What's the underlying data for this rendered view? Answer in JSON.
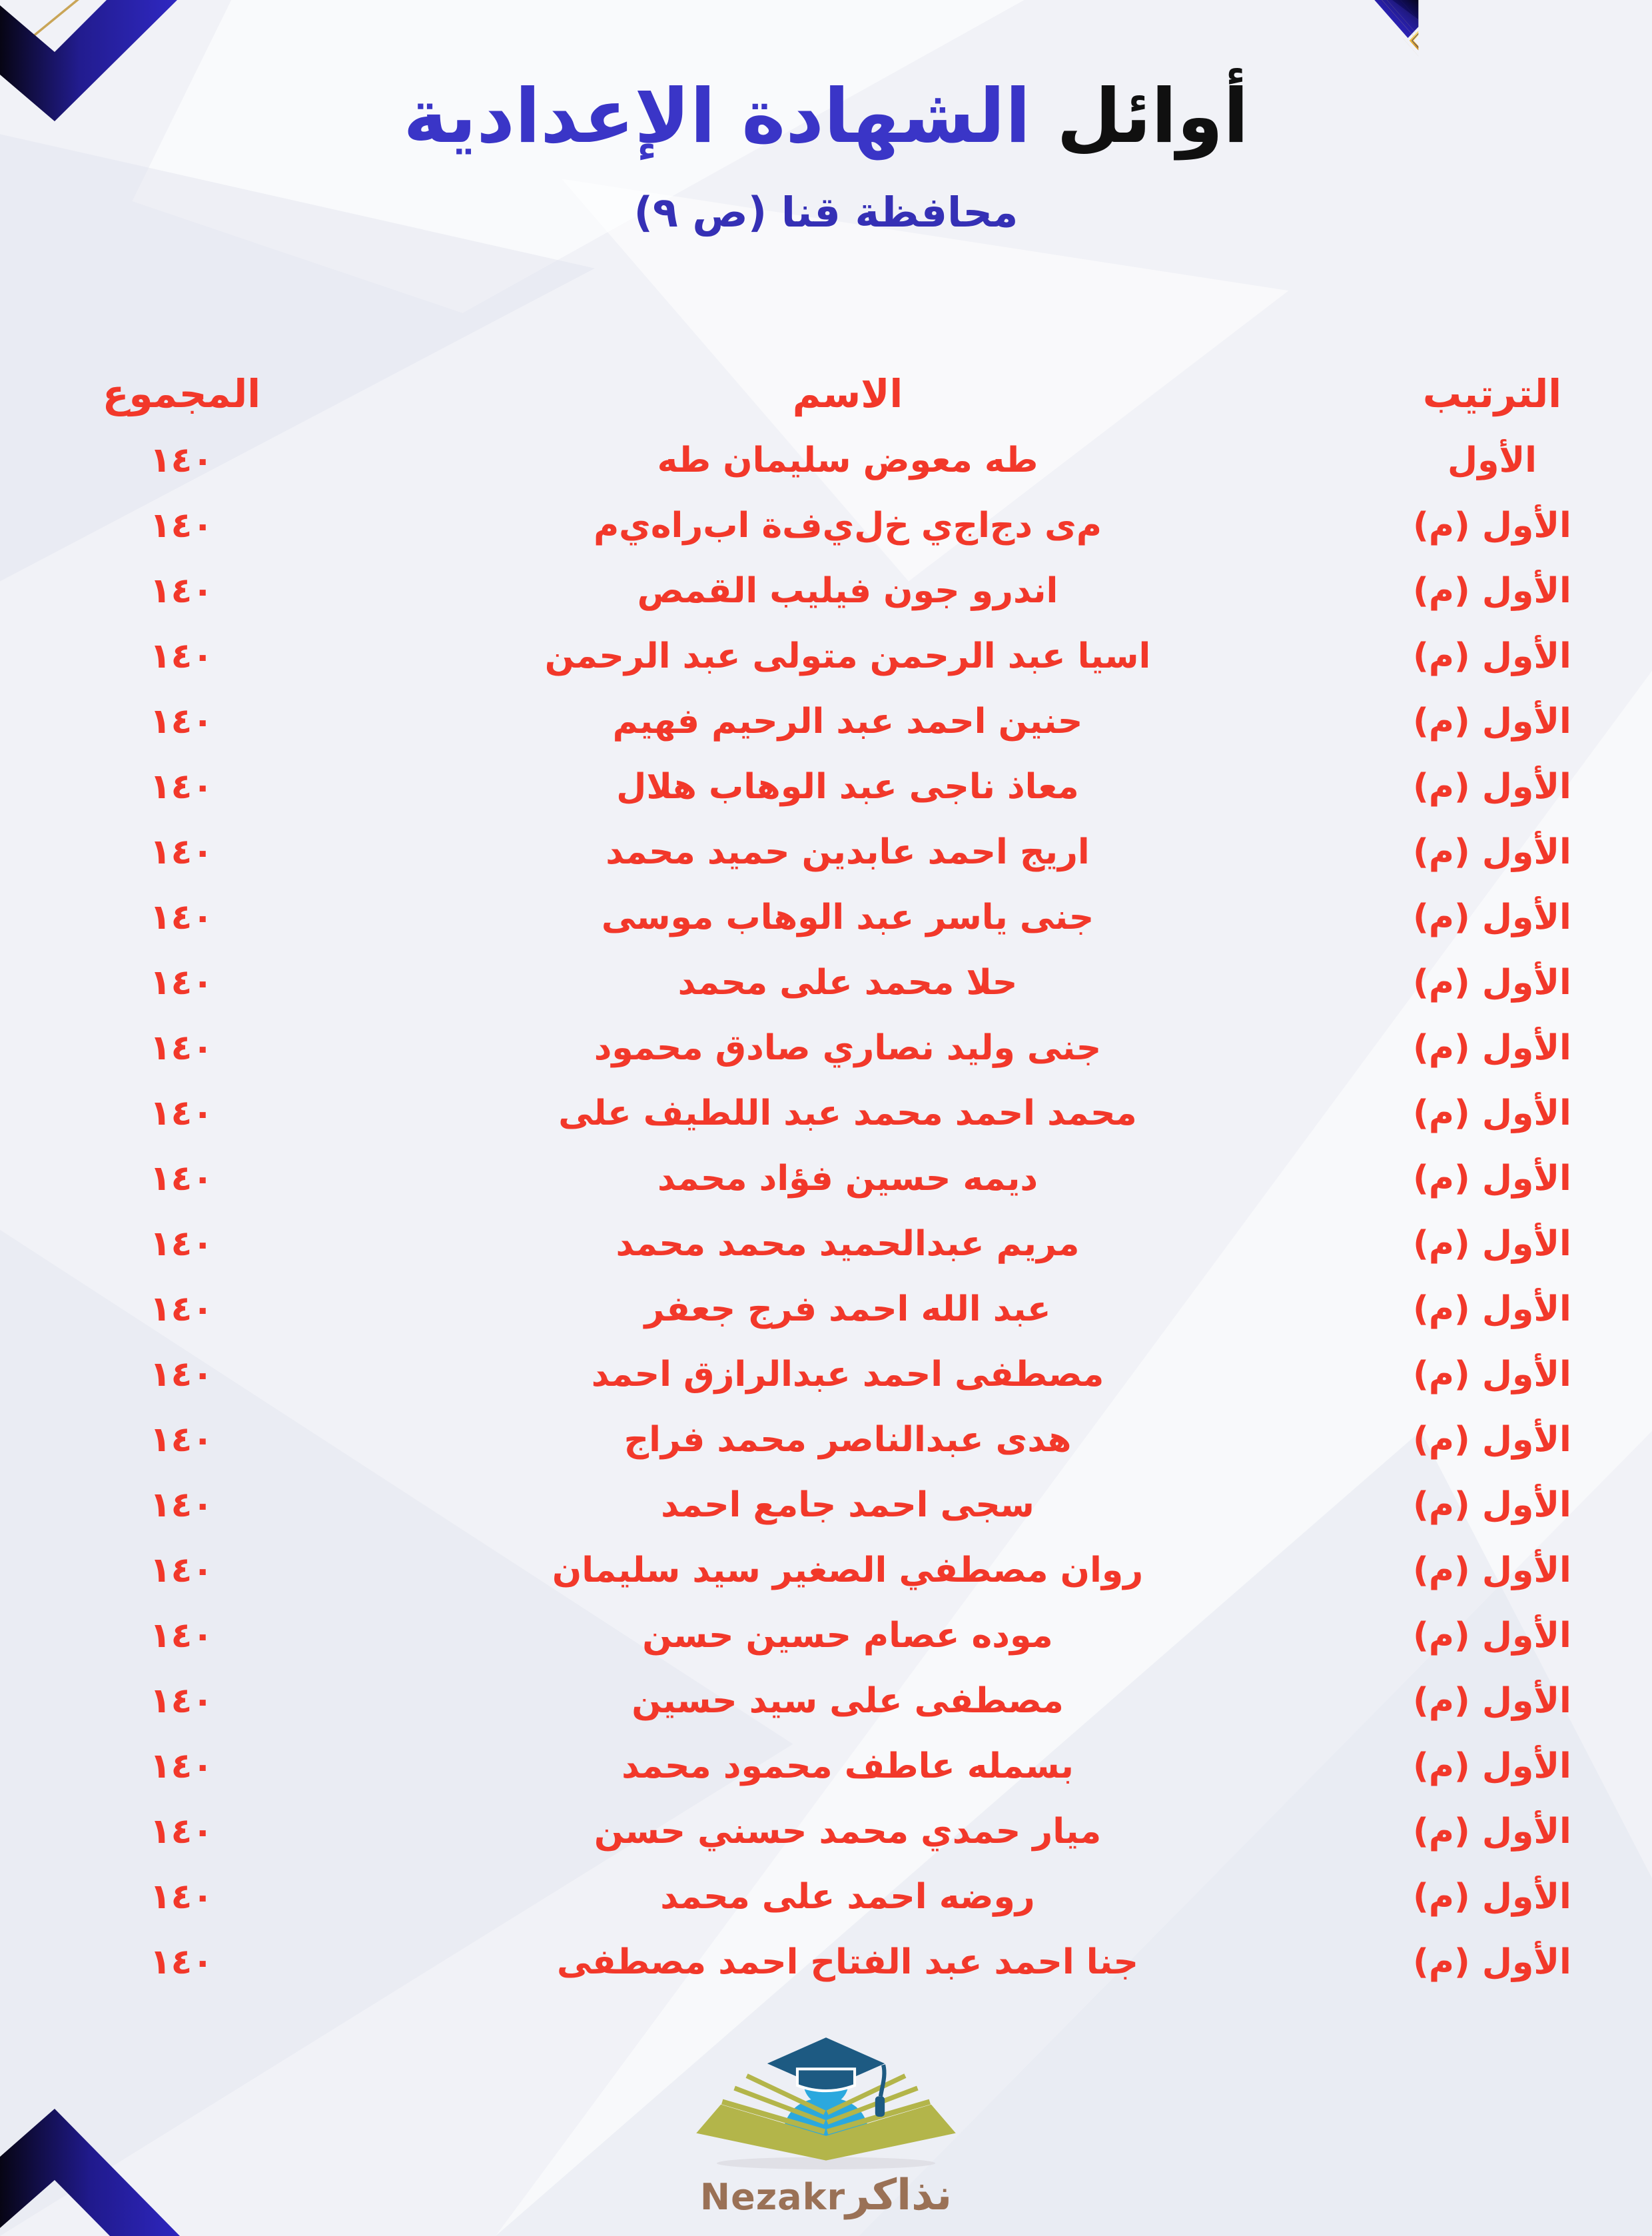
{
  "header": {
    "title_black": "أوائل",
    "title_blue": "الشهادة الإعدادية",
    "subtitle": "محافظة قنا (ص ٩)"
  },
  "table": {
    "headers": {
      "rank": "الترتيب",
      "name": "الاسم",
      "total": "المجموع"
    },
    "rows": [
      {
        "rank": "الأول",
        "name": "طه معوض سليمان طه",
        "total": "١٤٠"
      },
      {
        "rank": "الأول (م)",
        "name": "م‌ى د‌ج‌ا‌ج‌ي خ‌ل‌ي‌ف‌ة ا‌ب‌ر‌ا‌ه‌ي‌م",
        "total": "١٤٠"
      },
      {
        "rank": "الأول (م)",
        "name": "اندرو جون فيليب القمص",
        "total": "١٤٠"
      },
      {
        "rank": "الأول (م)",
        "name": "اسيا عبد الرحمن متولى عبد الرحمن",
        "total": "١٤٠"
      },
      {
        "rank": "الأول (م)",
        "name": "حنين احمد عبد الرحيم فهيم",
        "total": "١٤٠"
      },
      {
        "rank": "الأول (م)",
        "name": "معاذ ناجى عبد الوهاب هلال",
        "total": "١٤٠"
      },
      {
        "rank": "الأول (م)",
        "name": "اريج احمد عابدين حميد محمد",
        "total": "١٤٠"
      },
      {
        "rank": "الأول (م)",
        "name": "جنى ياسر عبد الوهاب موسى",
        "total": "١٤٠"
      },
      {
        "rank": "الأول (م)",
        "name": "حلا محمد على محمد",
        "total": "١٤٠"
      },
      {
        "rank": "الأول (م)",
        "name": "جنى وليد نصاري صادق محمود",
        "total": "١٤٠"
      },
      {
        "rank": "الأول (م)",
        "name": "محمد احمد محمد عبد اللطيف على",
        "total": "١٤٠"
      },
      {
        "rank": "الأول (م)",
        "name": "ديمه حسين فؤاد محمد",
        "total": "١٤٠"
      },
      {
        "rank": "الأول (م)",
        "name": "مريم عبدالحميد محمد محمد",
        "total": "١٤٠"
      },
      {
        "rank": "الأول (م)",
        "name": "عبد الله احمد فرج جعفر",
        "total": "١٤٠"
      },
      {
        "rank": "الأول (م)",
        "name": "مصطفى احمد عبدالرازق احمد",
        "total": "١٤٠"
      },
      {
        "rank": "الأول (م)",
        "name": "هدى عبدالناصر محمد فراج",
        "total": "١٤٠"
      },
      {
        "rank": "الأول (م)",
        "name": "سجى احمد جامع احمد",
        "total": "١٤٠"
      },
      {
        "rank": "الأول (م)",
        "name": "روان مصطفي الصغير سيد سليمان",
        "total": "١٤٠"
      },
      {
        "rank": "الأول (م)",
        "name": "موده عصام حسين حسن",
        "total": "١٤٠"
      },
      {
        "rank": "الأول (م)",
        "name": "مصطفى على سيد حسين",
        "total": "١٤٠"
      },
      {
        "rank": "الأول (م)",
        "name": "بسمله عاطف محمود محمد",
        "total": "١٤٠"
      },
      {
        "rank": "الأول (م)",
        "name": "ميار حمدي محمد حسني حسن",
        "total": "١٤٠"
      },
      {
        "rank": "الأول (م)",
        "name": "روضه احمد على محمد",
        "total": "١٤٠"
      },
      {
        "rank": "الأول (م)",
        "name": "جنا احمد عبد الفتاح احمد مصطفى",
        "total": "١٤٠"
      }
    ]
  },
  "footer": {
    "brand_ar": "نذاكر",
    "brand_en": "Nezakr"
  },
  "colors": {
    "accent_red": "#f2382a",
    "title_blue": "#3a35c7",
    "ribbon_royal_blue": "#2e26c0",
    "ribbon_navy": "#0a0826",
    "gold": "#edc14a",
    "brand_brown": "#9a7156",
    "student_blue": "#2ba8de",
    "cap_blue": "#1d5a82",
    "book_olive": "#b3b54a",
    "background": "#f1f2f7"
  }
}
